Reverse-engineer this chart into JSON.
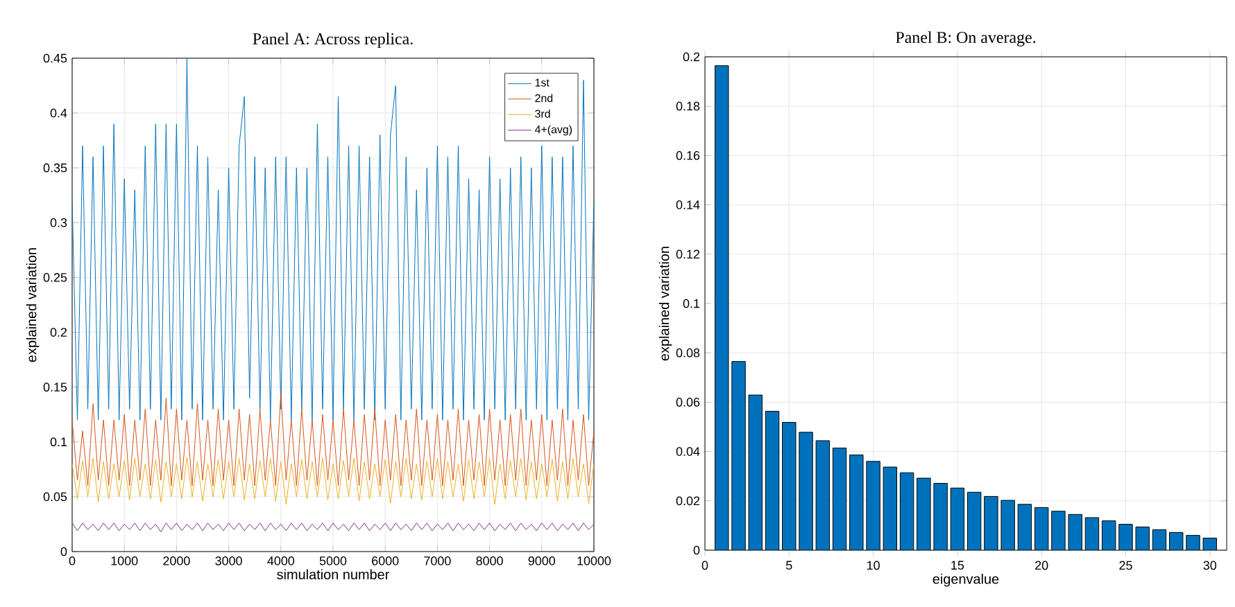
{
  "chart_data": [
    {
      "type": "line",
      "title": "Panel A: Across replica.",
      "xlabel": "simulation number",
      "ylabel": "explained variation",
      "x": [
        0,
        100,
        200,
        300,
        400,
        500,
        600,
        700,
        800,
        900,
        1000,
        1100,
        1200,
        1300,
        1400,
        1500,
        1600,
        1700,
        1800,
        1900,
        2000,
        2100,
        2200,
        2300,
        2400,
        2500,
        2600,
        2700,
        2800,
        2900,
        3000,
        3100,
        3200,
        3300,
        3400,
        3500,
        3600,
        3700,
        3800,
        3900,
        4000,
        4100,
        4200,
        4300,
        4400,
        4500,
        4600,
        4700,
        4800,
        4900,
        5000,
        5100,
        5200,
        5300,
        5400,
        5500,
        5600,
        5700,
        5800,
        5900,
        6000,
        6100,
        6200,
        6300,
        6400,
        6500,
        6600,
        6700,
        6800,
        6900,
        7000,
        7100,
        7200,
        7300,
        7400,
        7500,
        7600,
        7700,
        7800,
        7900,
        8000,
        8100,
        8200,
        8300,
        8400,
        8500,
        8600,
        8700,
        8800,
        8900,
        9000,
        9100,
        9200,
        9300,
        9400,
        9500,
        9600,
        9700,
        9800,
        9900,
        10000
      ],
      "series": [
        {
          "name": "1st",
          "color": "#0072bd",
          "values": [
            0.32,
            0.12,
            0.37,
            0.13,
            0.36,
            0.12,
            0.37,
            0.13,
            0.39,
            0.12,
            0.34,
            0.13,
            0.33,
            0.12,
            0.37,
            0.13,
            0.39,
            0.12,
            0.39,
            0.13,
            0.39,
            0.12,
            0.45,
            0.13,
            0.37,
            0.12,
            0.36,
            0.13,
            0.33,
            0.12,
            0.35,
            0.13,
            0.37,
            0.415,
            0.14,
            0.36,
            0.13,
            0.35,
            0.12,
            0.36,
            0.13,
            0.36,
            0.12,
            0.35,
            0.13,
            0.35,
            0.12,
            0.39,
            0.13,
            0.36,
            0.12,
            0.415,
            0.13,
            0.37,
            0.12,
            0.37,
            0.13,
            0.36,
            0.12,
            0.38,
            0.13,
            0.38,
            0.425,
            0.12,
            0.36,
            0.13,
            0.33,
            0.12,
            0.35,
            0.13,
            0.37,
            0.12,
            0.36,
            0.13,
            0.37,
            0.12,
            0.34,
            0.13,
            0.33,
            0.12,
            0.36,
            0.13,
            0.34,
            0.12,
            0.35,
            0.13,
            0.36,
            0.12,
            0.35,
            0.13,
            0.37,
            0.12,
            0.36,
            0.13,
            0.36,
            0.12,
            0.37,
            0.13,
            0.43,
            0.12,
            0.32
          ]
        },
        {
          "name": "2nd",
          "color": "#d95319",
          "values": [
            0.12,
            0.065,
            0.11,
            0.06,
            0.135,
            0.065,
            0.12,
            0.06,
            0.12,
            0.065,
            0.125,
            0.06,
            0.12,
            0.065,
            0.13,
            0.06,
            0.12,
            0.065,
            0.14,
            0.06,
            0.13,
            0.065,
            0.12,
            0.06,
            0.135,
            0.065,
            0.12,
            0.06,
            0.13,
            0.065,
            0.12,
            0.06,
            0.13,
            0.065,
            0.125,
            0.06,
            0.13,
            0.065,
            0.12,
            0.06,
            0.145,
            0.065,
            0.12,
            0.06,
            0.13,
            0.065,
            0.12,
            0.06,
            0.125,
            0.065,
            0.12,
            0.06,
            0.13,
            0.065,
            0.12,
            0.06,
            0.125,
            0.065,
            0.13,
            0.06,
            0.12,
            0.065,
            0.125,
            0.06,
            0.12,
            0.065,
            0.13,
            0.06,
            0.12,
            0.065,
            0.125,
            0.06,
            0.12,
            0.065,
            0.13,
            0.06,
            0.12,
            0.065,
            0.125,
            0.06,
            0.13,
            0.065,
            0.12,
            0.06,
            0.125,
            0.065,
            0.13,
            0.06,
            0.12,
            0.065,
            0.125,
            0.06,
            0.12,
            0.065,
            0.13,
            0.06,
            0.12,
            0.065,
            0.125,
            0.06,
            0.11
          ]
        },
        {
          "name": "3rd",
          "color": "#edb120",
          "values": [
            0.08,
            0.048,
            0.083,
            0.05,
            0.085,
            0.045,
            0.082,
            0.048,
            0.08,
            0.05,
            0.083,
            0.047,
            0.085,
            0.05,
            0.08,
            0.048,
            0.084,
            0.045,
            0.082,
            0.05,
            0.08,
            0.048,
            0.086,
            0.05,
            0.082,
            0.046,
            0.08,
            0.05,
            0.084,
            0.048,
            0.082,
            0.05,
            0.085,
            0.047,
            0.08,
            0.048,
            0.083,
            0.05,
            0.085,
            0.046,
            0.082,
            0.043,
            0.08,
            0.05,
            0.084,
            0.048,
            0.082,
            0.05,
            0.085,
            0.047,
            0.08,
            0.048,
            0.083,
            0.05,
            0.085,
            0.046,
            0.082,
            0.048,
            0.08,
            0.05,
            0.084,
            0.044,
            0.082,
            0.05,
            0.085,
            0.048,
            0.08,
            0.047,
            0.083,
            0.05,
            0.085,
            0.048,
            0.082,
            0.05,
            0.08,
            0.046,
            0.084,
            0.048,
            0.082,
            0.05,
            0.085,
            0.043,
            0.08,
            0.048,
            0.083,
            0.05,
            0.085,
            0.047,
            0.082,
            0.048,
            0.08,
            0.05,
            0.084,
            0.046,
            0.082,
            0.048,
            0.085,
            0.05,
            0.08,
            0.044,
            0.08
          ]
        },
        {
          "name": "4+(avg)",
          "color": "#7e2f8e",
          "values": [
            0.026,
            0.019,
            0.026,
            0.02,
            0.025,
            0.019,
            0.026,
            0.02,
            0.026,
            0.019,
            0.025,
            0.02,
            0.026,
            0.019,
            0.026,
            0.02,
            0.025,
            0.018,
            0.026,
            0.02,
            0.026,
            0.019,
            0.025,
            0.02,
            0.026,
            0.019,
            0.026,
            0.02,
            0.025,
            0.019,
            0.026,
            0.02,
            0.026,
            0.019,
            0.025,
            0.02,
            0.026,
            0.019,
            0.026,
            0.02,
            0.025,
            0.019,
            0.026,
            0.02,
            0.026,
            0.019,
            0.025,
            0.02,
            0.026,
            0.019,
            0.026,
            0.02,
            0.025,
            0.019,
            0.026,
            0.02,
            0.026,
            0.019,
            0.025,
            0.02,
            0.026,
            0.019,
            0.026,
            0.02,
            0.025,
            0.019,
            0.026,
            0.02,
            0.026,
            0.019,
            0.025,
            0.02,
            0.026,
            0.019,
            0.026,
            0.02,
            0.025,
            0.019,
            0.026,
            0.02,
            0.026,
            0.019,
            0.025,
            0.02,
            0.026,
            0.019,
            0.026,
            0.02,
            0.025,
            0.019,
            0.026,
            0.02,
            0.026,
            0.019,
            0.025,
            0.02,
            0.026,
            0.019,
            0.026,
            0.02,
            0.025
          ]
        }
      ],
      "xlim": [
        0,
        10000
      ],
      "xticks": [
        0,
        1000,
        2000,
        3000,
        4000,
        5000,
        6000,
        7000,
        8000,
        9000,
        10000
      ],
      "ylim": [
        0,
        0.45
      ],
      "yticks": [
        0,
        0.05,
        0.1,
        0.15,
        0.2,
        0.25,
        0.3,
        0.35,
        0.4,
        0.45
      ],
      "grid": true,
      "legend": "top right"
    },
    {
      "type": "bar",
      "title": "Panel B: On average.",
      "xlabel": "eigenvalue",
      "ylabel": "explained variation",
      "x": [
        1,
        2,
        3,
        4,
        5,
        6,
        7,
        8,
        9,
        10,
        11,
        12,
        13,
        14,
        15,
        16,
        17,
        18,
        19,
        20,
        21,
        22,
        23,
        24,
        25,
        26,
        27,
        28,
        29,
        30
      ],
      "values": [
        0.1964,
        0.0765,
        0.0629,
        0.0563,
        0.0518,
        0.0478,
        0.0444,
        0.0414,
        0.0386,
        0.036,
        0.0337,
        0.0314,
        0.0292,
        0.0271,
        0.0252,
        0.0235,
        0.0218,
        0.0202,
        0.0186,
        0.0173,
        0.0158,
        0.0145,
        0.0132,
        0.0119,
        0.0105,
        0.0094,
        0.0083,
        0.0072,
        0.006,
        0.0049
      ],
      "color": "#0072bd",
      "xlim": [
        0,
        31
      ],
      "xticks": [
        0,
        5,
        10,
        15,
        20,
        25,
        30
      ],
      "ylim": [
        0,
        0.2
      ],
      "yticks": [
        0,
        0.02,
        0.04,
        0.06,
        0.08,
        0.1,
        0.12,
        0.14,
        0.16,
        0.18,
        0.2
      ],
      "grid": true
    }
  ]
}
